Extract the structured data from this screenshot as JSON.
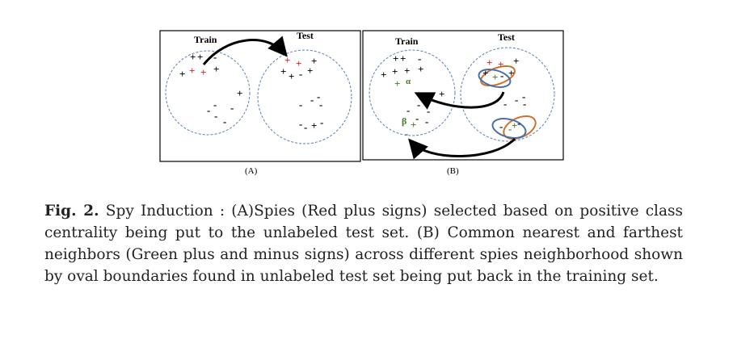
{
  "figure": {
    "panel_a": {
      "train_label": "Train",
      "test_label": "Test",
      "caption_label": "(A)"
    },
    "panel_b": {
      "train_label": "Train",
      "test_label": "Test",
      "caption_label": "(B)",
      "alpha_label": "α",
      "beta_label": "β"
    },
    "colors": {
      "black": "#000000",
      "red": "#e02020",
      "green": "#4a7a2a",
      "circle": "#5b7fb3",
      "oval_blue": "#4a6fa5",
      "oval_orange": "#d0702a"
    }
  },
  "caption": {
    "lead": "Fig. 2.",
    "text": " Spy Induction : (A)Spies (Red plus signs) selected based on positive class centrality being put to the unlabeled test set. (B) Common nearest and farthest neighbors (Green plus and minus signs) across different spies neighborhood shown by oval boundaries found in unlabeled test set being put back in the training set."
  }
}
